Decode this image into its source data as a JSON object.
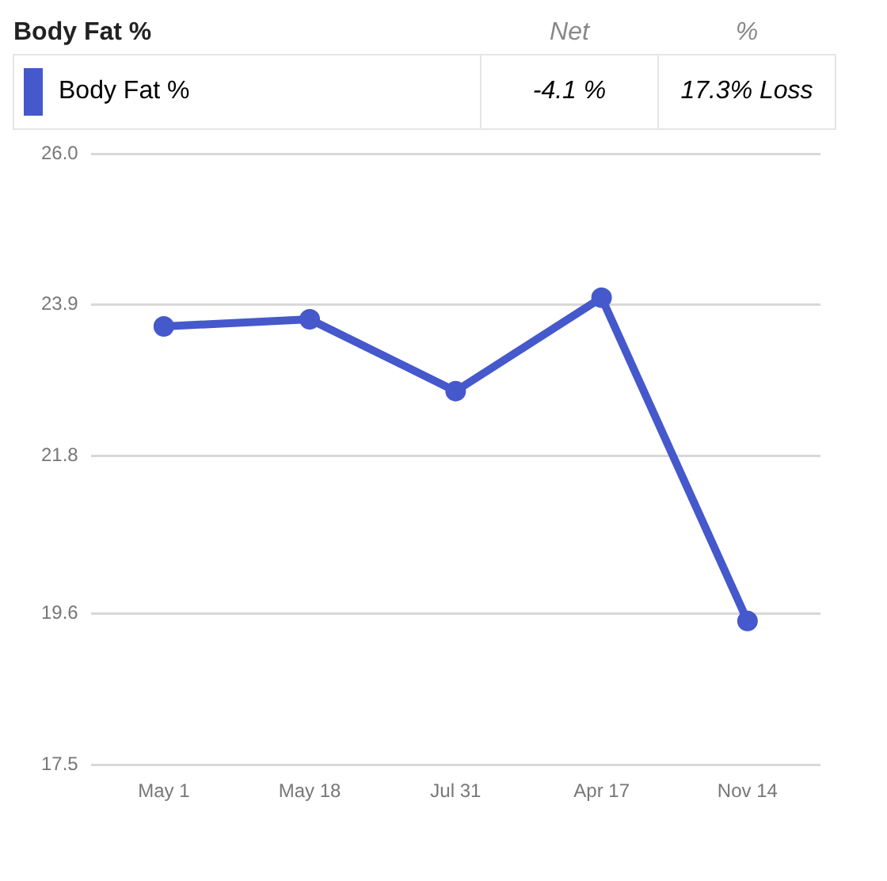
{
  "chart_data": {
    "type": "line",
    "title": "Body Fat %",
    "categories": [
      "May 1",
      "May 18",
      "Jul 31",
      "Apr 17",
      "Nov 14"
    ],
    "series": [
      {
        "name": "Body Fat %",
        "color": "#4558cc",
        "values": [
          23.6,
          23.7,
          22.7,
          24.0,
          19.5
        ]
      }
    ],
    "annotations": [
      "Net",
      "%",
      "-4.1 %",
      "17.3% Loss"
    ],
    "ylim": [
      17.5,
      26.0
    ],
    "yticks": [
      {
        "value": 17.5,
        "label": "17.5"
      },
      {
        "value": 19.6,
        "label": "19.6"
      },
      {
        "value": 21.8,
        "label": "21.8"
      },
      {
        "value": 23.9,
        "label": "23.9"
      },
      {
        "value": 26.0,
        "label": "26.0"
      }
    ],
    "grid": "y",
    "legend": "top",
    "marker": "circle",
    "line_style": "solid"
  }
}
